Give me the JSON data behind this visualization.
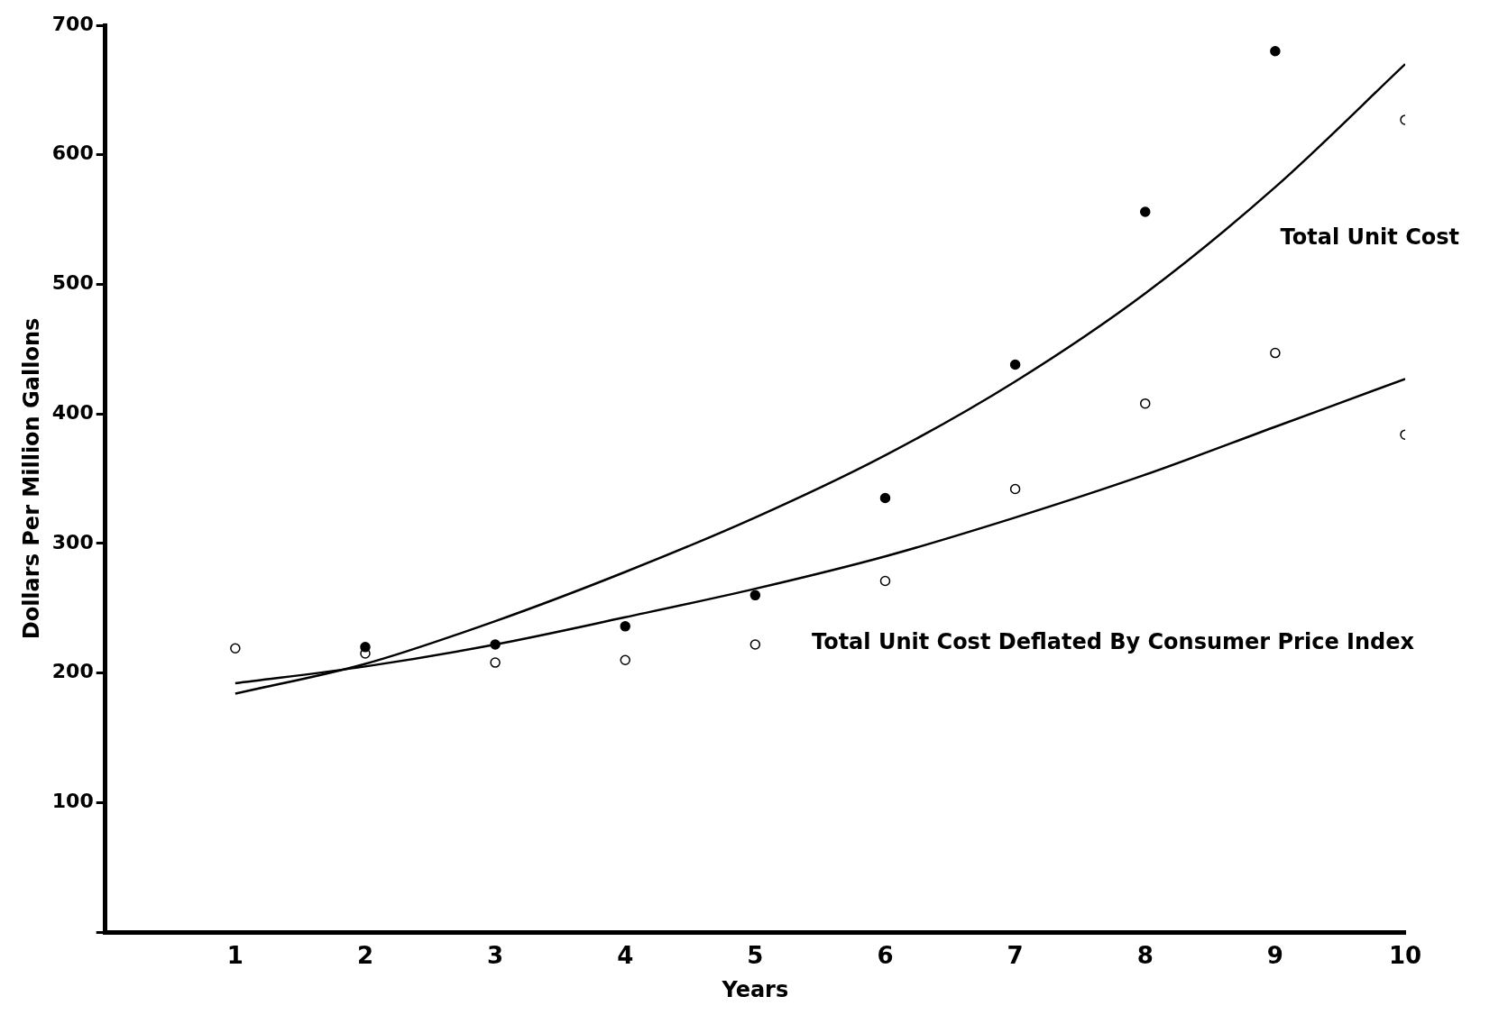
{
  "chart_data": {
    "type": "scatter",
    "xlabel": "Years",
    "ylabel": "Dollars Per Million Gallons",
    "xlim": [
      0,
      10
    ],
    "xticks": [
      1,
      2,
      3,
      4,
      5,
      6,
      7,
      8,
      9,
      10
    ],
    "ylim": [
      0,
      700
    ],
    "yticks": [
      {
        "value": 0,
        "label": null
      },
      100,
      200,
      300,
      400,
      500,
      600,
      700
    ],
    "grid": false,
    "legend": false,
    "marker": "circle",
    "series": [
      {
        "color": "#000000",
        "x": [
          2,
          3,
          4,
          5,
          6,
          7,
          8,
          9
        ],
        "values": [
          220,
          222,
          236,
          260,
          335,
          438,
          556,
          680
        ]
      },
      {
        "color": "#ffffff",
        "x": [
          1,
          2,
          3,
          4,
          5,
          6,
          7,
          8,
          9,
          10,
          10
        ],
        "values": [
          219,
          215,
          208,
          210,
          222,
          271,
          342,
          408,
          447,
          384,
          627
        ]
      },
      {
        "type": "line",
        "name": "Total Unit Cost",
        "color": "#000000",
        "marker": "none",
        "x": [
          1,
          2,
          3,
          4,
          5,
          6,
          7,
          8,
          9,
          10
        ],
        "values": [
          184,
          207,
          240,
          278,
          320,
          368,
          425,
          493,
          575,
          670
        ]
      },
      {
        "type": "line",
        "name": "Total Unit Cost Deflated By Consumer Price Index",
        "color": "#000000",
        "marker": "none",
        "x": [
          1,
          2,
          3,
          4,
          5,
          6,
          7,
          8,
          9,
          10
        ],
        "values": [
          192,
          205,
          222,
          243,
          265,
          290,
          320,
          353,
          390,
          427
        ]
      }
    ]
  }
}
